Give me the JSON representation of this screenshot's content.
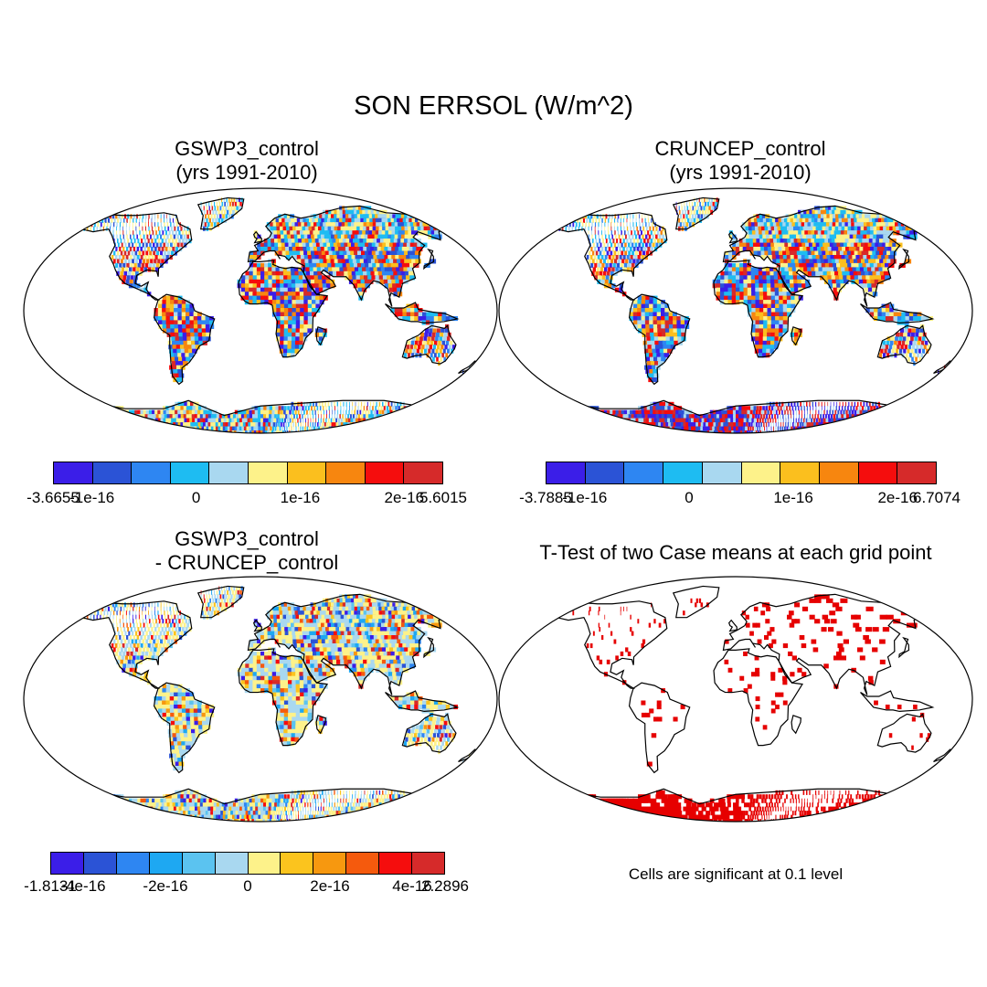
{
  "title": "SON ERRSOL (W/m^2)",
  "panels": {
    "gswp3": {
      "title_line1": "GSWP3_control",
      "title_line2": "(yrs 1991-2010)",
      "colorbar": {
        "colors": [
          "#3b1ee8",
          "#2b53d6",
          "#2e86f2",
          "#1ebcf2",
          "#a9d8f0",
          "#fdf28a",
          "#fbbf1e",
          "#f7860f",
          "#f50d0d",
          "#d62a2a"
        ],
        "labels": [
          "-3.6655",
          "-1e-16",
          "0",
          "1e-16",
          "2e-16",
          "5.6015"
        ]
      }
    },
    "cruncep": {
      "title_line1": "CRUNCEP_control",
      "title_line2": "(yrs 1991-2010)",
      "colorbar": {
        "colors": [
          "#3b1ee8",
          "#2b53d6",
          "#2e86f2",
          "#1ebcf2",
          "#a9d8f0",
          "#fdf28a",
          "#fbbf1e",
          "#f7860f",
          "#f50d0d",
          "#d62a2a"
        ],
        "labels": [
          "-3.7885",
          "-1e-16",
          "0",
          "1e-16",
          "2e-16",
          "6.7074"
        ]
      }
    },
    "diff": {
      "title_line1": "GSWP3_control",
      "title_line2": "- CRUNCEP_control",
      "colorbar": {
        "colors": [
          "#3b1ee8",
          "#2b53d6",
          "#2e86f2",
          "#1ea8f2",
          "#5bc3f0",
          "#a9d8f0",
          "#fdf28a",
          "#fbc41e",
          "#f7980f",
          "#f55a0d",
          "#f50d0d",
          "#d62a2a"
        ],
        "labels": [
          "-1.8131",
          "-4e-16",
          "-2e-16",
          "0",
          "2e-16",
          "4e-16",
          "2.2896"
        ]
      }
    },
    "ttest": {
      "title": "T-Test of two Case means at each grid point",
      "note": "Cells are significant at 0.1 level",
      "significance_color": "#e60000"
    }
  }
}
